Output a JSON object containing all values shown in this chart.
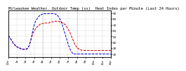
{
  "title": "Milwaukee Weather  Outdoor Temp (vs)  Heat Index per Minute (Last 24 Hours)",
  "ylabel_right_ticks": [
    20,
    30,
    40,
    50,
    60,
    70,
    80,
    90
  ],
  "ylim": [
    15,
    95
  ],
  "xlim": [
    0,
    287
  ],
  "vlines": [
    96,
    192
  ],
  "bg_color": "#ffffff",
  "plot_bg_color": "#ffffff",
  "grid_color": "#aaaaaa",
  "title_fontsize": 4.0,
  "tick_fontsize": 3.0,
  "line_color_temp": "#cc0000",
  "line_color_heat": "#0000dd",
  "line_style": "--",
  "line_width": 0.7,
  "n_points": 288,
  "temp_data": [
    52,
    51,
    50,
    49,
    48,
    47,
    46,
    45,
    44,
    43,
    42,
    41,
    40,
    39,
    38,
    37,
    37,
    36,
    35,
    35,
    34,
    34,
    33,
    33,
    32,
    32,
    32,
    31,
    31,
    31,
    30,
    30,
    30,
    30,
    29,
    29,
    29,
    29,
    29,
    29,
    28,
    28,
    28,
    28,
    28,
    28,
    28,
    28,
    28,
    28,
    28,
    29,
    29,
    29,
    30,
    31,
    32,
    33,
    34,
    36,
    38,
    40,
    42,
    44,
    46,
    48,
    50,
    52,
    54,
    56,
    57,
    58,
    59,
    60,
    61,
    62,
    63,
    64,
    65,
    65,
    66,
    67,
    67,
    68,
    68,
    69,
    69,
    70,
    70,
    71,
    71,
    71,
    72,
    72,
    72,
    72,
    72,
    72,
    72,
    73,
    73,
    73,
    73,
    73,
    73,
    73,
    73,
    73,
    73,
    73,
    73,
    73,
    73,
    73,
    73,
    74,
    74,
    74,
    74,
    74,
    74,
    74,
    75,
    75,
    75,
    75,
    75,
    75,
    75,
    75,
    76,
    76,
    76,
    76,
    76,
    76,
    76,
    76,
    76,
    76,
    76,
    76,
    76,
    75,
    75,
    75,
    75,
    74,
    74,
    74,
    74,
    73,
    73,
    73,
    72,
    72,
    72,
    71,
    71,
    70,
    70,
    69,
    68,
    67,
    66,
    65,
    64,
    63,
    62,
    61,
    60,
    59,
    57,
    56,
    55,
    53,
    52,
    50,
    49,
    47,
    46,
    44,
    43,
    41,
    40,
    38,
    37,
    36,
    35,
    34,
    33,
    32,
    31,
    31,
    30,
    30,
    29,
    29,
    28,
    28,
    28,
    28,
    27,
    27,
    27,
    27,
    26,
    26,
    26,
    26,
    26,
    26,
    26,
    26,
    26,
    26,
    26,
    26,
    26,
    26,
    26,
    26,
    26,
    26,
    26,
    26,
    26,
    26,
    26,
    26,
    26,
    26,
    26,
    26,
    26,
    26,
    26,
    26,
    26,
    26,
    26,
    26,
    26,
    26,
    26,
    26,
    26,
    26,
    26,
    26,
    26,
    26,
    26,
    26,
    26,
    26,
    26,
    26,
    26,
    26,
    26,
    26,
    26,
    26,
    26,
    26,
    26,
    26,
    26,
    26,
    26,
    26,
    26,
    26,
    26,
    26,
    26,
    26,
    26,
    26,
    26,
    26,
    26,
    26,
    26,
    26,
    26,
    26
  ],
  "heat_data": [
    52,
    51,
    50,
    49,
    48,
    47,
    46,
    45,
    44,
    43,
    42,
    41,
    40,
    39,
    38,
    37,
    37,
    36,
    35,
    35,
    34,
    34,
    33,
    33,
    32,
    32,
    32,
    31,
    31,
    31,
    30,
    30,
    30,
    30,
    29,
    29,
    29,
    29,
    29,
    29,
    28,
    28,
    28,
    28,
    28,
    28,
    28,
    28,
    28,
    28,
    28,
    29,
    29,
    29,
    30,
    31,
    32,
    33,
    34,
    36,
    38,
    40,
    42,
    44,
    47,
    50,
    53,
    56,
    59,
    62,
    65,
    67,
    69,
    71,
    73,
    74,
    76,
    77,
    78,
    79,
    80,
    81,
    82,
    83,
    84,
    84,
    85,
    85,
    86,
    86,
    87,
    87,
    87,
    88,
    88,
    88,
    88,
    88,
    88,
    88,
    89,
    89,
    89,
    89,
    89,
    89,
    89,
    89,
    89,
    89,
    89,
    89,
    89,
    89,
    89,
    89,
    89,
    89,
    89,
    89,
    89,
    89,
    89,
    89,
    89,
    89,
    89,
    89,
    89,
    89,
    89,
    88,
    88,
    88,
    88,
    87,
    87,
    86,
    86,
    85,
    84,
    83,
    82,
    81,
    80,
    79,
    78,
    76,
    75,
    73,
    71,
    70,
    68,
    66,
    64,
    62,
    60,
    58,
    56,
    54,
    52,
    50,
    48,
    46,
    44,
    42,
    40,
    38,
    36,
    34,
    33,
    31,
    30,
    28,
    27,
    26,
    25,
    24,
    23,
    22,
    21,
    20,
    20,
    20,
    20,
    20,
    20,
    20,
    20,
    20,
    20,
    20,
    20,
    20,
    20,
    20,
    20,
    20,
    20,
    20,
    20,
    20,
    20,
    20,
    20,
    20,
    20,
    20,
    20,
    20,
    20,
    20,
    20,
    20,
    20,
    20,
    20,
    20,
    20,
    20,
    20,
    20,
    20,
    20,
    20,
    20,
    20,
    20,
    20,
    20,
    20,
    20,
    20,
    20,
    20,
    20,
    20,
    20,
    20,
    20,
    20,
    20,
    20,
    20,
    20,
    20,
    20,
    20,
    20,
    20,
    20,
    20,
    20,
    20,
    20,
    20,
    20,
    20,
    20,
    20,
    20,
    20,
    20,
    20,
    20,
    20,
    20,
    20,
    20,
    20,
    20,
    20,
    20,
    20,
    20,
    20,
    20,
    20,
    20,
    20,
    20,
    20,
    20,
    20,
    20,
    20,
    20,
    20
  ],
  "xtick_positions": [
    0,
    24,
    48,
    72,
    96,
    120,
    144,
    168,
    192,
    216,
    240,
    264,
    287
  ],
  "xtick_labels": [
    "12a",
    "1a",
    "2a",
    "3a",
    "4a",
    "5a",
    "6a",
    "7a",
    "8a",
    "9a",
    "10a",
    "11a",
    "12p"
  ]
}
